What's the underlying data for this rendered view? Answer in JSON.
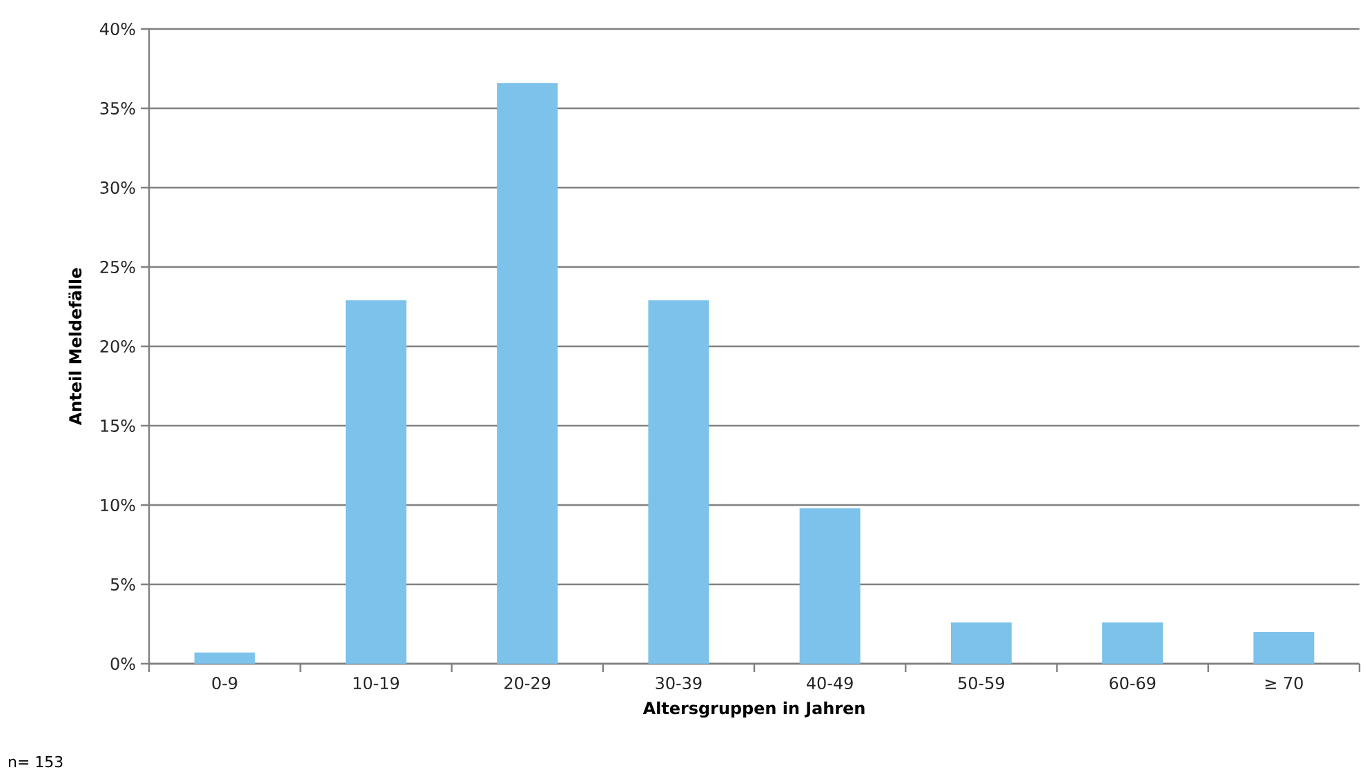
{
  "chart_data": {
    "type": "bar",
    "xlabel": "Altersgruppen in Jahren",
    "ylabel": "Anteil Meldefälle",
    "categories": [
      "0-9",
      "10-19",
      "20-29",
      "30-39",
      "40-49",
      "50-59",
      "60-69",
      "≥ 70"
    ],
    "values": [
      0.7,
      22.9,
      36.6,
      22.9,
      9.8,
      2.6,
      2.6,
      2.0
    ],
    "color": "#7cc2eb",
    "ylim": [
      0,
      40
    ],
    "yticks": [
      {
        "value": 0,
        "label": "0%"
      },
      {
        "value": 5,
        "label": "5%"
      },
      {
        "value": 10,
        "label": "10%"
      },
      {
        "value": 15,
        "label": "15%"
      },
      {
        "value": 20,
        "label": "20%"
      },
      {
        "value": 25,
        "label": "25%"
      },
      {
        "value": 30,
        "label": "30%"
      },
      {
        "value": 35,
        "label": "35%"
      },
      {
        "value": 40,
        "label": "40%"
      }
    ],
    "grid": "y",
    "annotations": [
      "n= 153"
    ]
  }
}
